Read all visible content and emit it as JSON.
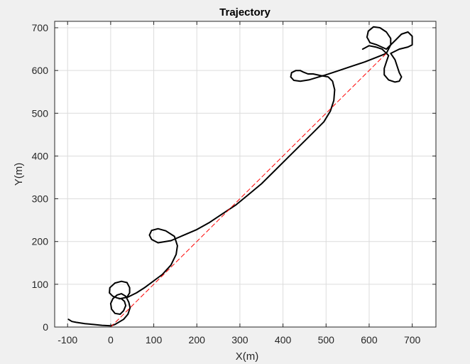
{
  "chart_data": {
    "type": "line",
    "title": "Trajectory",
    "xlabel": "X(m)",
    "ylabel": "Y(m)",
    "xlim": [
      -130,
      755
    ],
    "ylim": [
      0,
      715
    ],
    "xticks": [
      -100,
      0,
      100,
      200,
      300,
      400,
      500,
      600,
      700
    ],
    "yticks": [
      0,
      100,
      200,
      300,
      400,
      500,
      600,
      700
    ],
    "xtick_labels": [
      "-100",
      "0",
      "100",
      "200",
      "300",
      "400",
      "500",
      "600",
      "700"
    ],
    "ytick_labels": [
      "0",
      "100",
      "200",
      "300",
      "400",
      "500",
      "600",
      "700"
    ],
    "grid": true,
    "legend": "none",
    "colors": {
      "trajectory": "#000000",
      "reference": "#ff0000",
      "grid": "#dcdcdc",
      "axes_bg": "#ffffff",
      "figure_bg": "#f0f0f0"
    },
    "series": [
      {
        "style": "solid",
        "points": [
          [
            -98,
            18
          ],
          [
            -90,
            13
          ],
          [
            -80,
            11
          ],
          [
            -60,
            8
          ],
          [
            -40,
            6
          ],
          [
            -20,
            4
          ],
          [
            0,
            3
          ],
          [
            10,
            6
          ],
          [
            20,
            12
          ],
          [
            30,
            18
          ],
          [
            40,
            30
          ],
          [
            45,
            45
          ],
          [
            42,
            58
          ],
          [
            35,
            72
          ],
          [
            25,
            78
          ],
          [
            15,
            75
          ],
          [
            5,
            66
          ],
          [
            0,
            55
          ],
          [
            2,
            42
          ],
          [
            10,
            32
          ],
          [
            22,
            30
          ],
          [
            30,
            38
          ],
          [
            35,
            50
          ],
          [
            32,
            60
          ],
          [
            25,
            66
          ],
          [
            15,
            68
          ],
          [
            5,
            72
          ],
          [
            -3,
            80
          ],
          [
            -2,
            92
          ],
          [
            10,
            103
          ],
          [
            25,
            107
          ],
          [
            38,
            104
          ],
          [
            44,
            92
          ],
          [
            44,
            80
          ],
          [
            38,
            70
          ],
          [
            30,
            68
          ],
          [
            20,
            66
          ],
          [
            40,
            70
          ],
          [
            60,
            80
          ],
          [
            80,
            93
          ],
          [
            100,
            108
          ],
          [
            120,
            123
          ],
          [
            140,
            145
          ],
          [
            152,
            170
          ],
          [
            155,
            190
          ],
          [
            148,
            212
          ],
          [
            128,
            225
          ],
          [
            110,
            230
          ],
          [
            95,
            226
          ],
          [
            90,
            215
          ],
          [
            95,
            205
          ],
          [
            110,
            197
          ],
          [
            140,
            202
          ],
          [
            170,
            215
          ],
          [
            200,
            228
          ],
          [
            230,
            245
          ],
          [
            260,
            265
          ],
          [
            290,
            285
          ],
          [
            320,
            310
          ],
          [
            350,
            335
          ],
          [
            380,
            365
          ],
          [
            410,
            395
          ],
          [
            440,
            425
          ],
          [
            470,
            455
          ],
          [
            495,
            480
          ],
          [
            510,
            505
          ],
          [
            518,
            530
          ],
          [
            520,
            555
          ],
          [
            515,
            575
          ],
          [
            505,
            585
          ],
          [
            488,
            588
          ],
          [
            470,
            592
          ],
          [
            458,
            592
          ],
          [
            448,
            596
          ],
          [
            440,
            600
          ],
          [
            430,
            600
          ],
          [
            420,
            595
          ],
          [
            418,
            585
          ],
          [
            425,
            577
          ],
          [
            440,
            575
          ],
          [
            460,
            578
          ],
          [
            480,
            584
          ],
          [
            500,
            590
          ],
          [
            530,
            600
          ],
          [
            560,
            610
          ],
          [
            590,
            620
          ],
          [
            620,
            632
          ],
          [
            640,
            640
          ],
          [
            650,
            660
          ],
          [
            650,
            675
          ],
          [
            640,
            690
          ],
          [
            625,
            700
          ],
          [
            610,
            702
          ],
          [
            598,
            692
          ],
          [
            595,
            678
          ],
          [
            602,
            665
          ],
          [
            618,
            660
          ],
          [
            640,
            650
          ],
          [
            660,
            670
          ],
          [
            675,
            685
          ],
          [
            690,
            690
          ],
          [
            700,
            680
          ],
          [
            700,
            660
          ],
          [
            690,
            655
          ],
          [
            670,
            650
          ],
          [
            650,
            640
          ],
          [
            660,
            625
          ],
          [
            670,
            595
          ],
          [
            675,
            585
          ],
          [
            670,
            575
          ],
          [
            660,
            573
          ],
          [
            645,
            578
          ],
          [
            635,
            590
          ],
          [
            635,
            605
          ],
          [
            640,
            620
          ],
          [
            645,
            635
          ],
          [
            630,
            650
          ],
          [
            615,
            655
          ],
          [
            600,
            658
          ],
          [
            585,
            650
          ]
        ]
      },
      {
        "style": "dashed",
        "points": [
          [
            0,
            0
          ],
          [
            640,
            640
          ]
        ]
      }
    ]
  }
}
